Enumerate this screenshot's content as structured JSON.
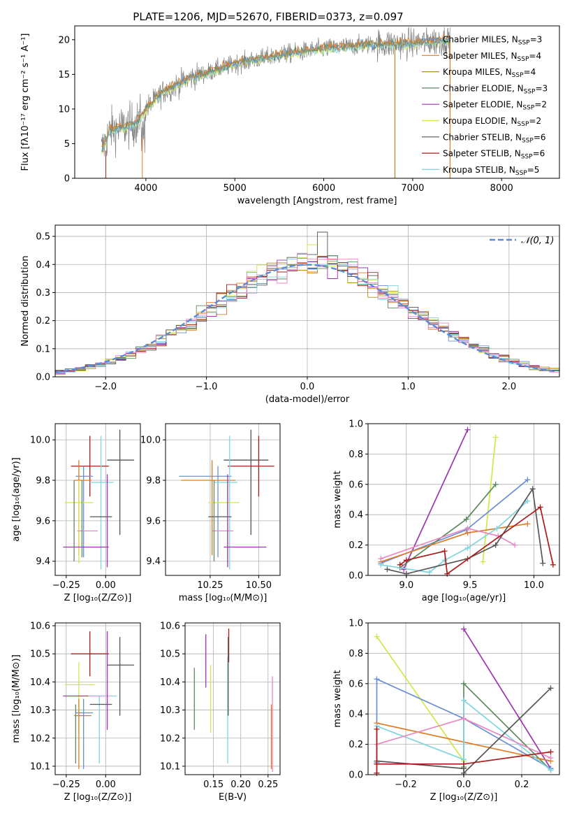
{
  "colors": {
    "chab_miles": "#6a8fd6",
    "salp_miles": "#e07a22",
    "krou_miles": "#b08a25",
    "chab_elodie": "#5c8a5c",
    "salp_elodie": "#9d34b0",
    "krou_elodie": "#d4e64a",
    "chab_stelib": "#555555",
    "salp_stelib": "#aa1c1c",
    "krou_stelib": "#7fd6de",
    "pink": "#e889c2",
    "spectrum": "#808080",
    "normal_curve": "#5b8ad6",
    "grid": "#b0b0b0"
  },
  "chart_data": [
    {
      "id": "spectrum",
      "type": "line",
      "title": "PLATE=1206, MJD=52670, FIBERID=0373, z=0.097",
      "xlabel": "wavelength [Angstrom, rest frame]",
      "ylabel": "Flux [fλ10⁻¹⁷ erg cm⁻² s⁻¹ A⁻¹]",
      "xlim": [
        3200,
        8650
      ],
      "ylim": [
        0,
        22
      ],
      "xticks": [
        "4000",
        "5000",
        "6000",
        "7000",
        "8000"
      ],
      "yticks": [
        "0",
        "5",
        "10",
        "15",
        "20"
      ],
      "grid": false,
      "legend_position": "right",
      "legend": [
        {
          "label": "Chabrier MILES, N",
          "sub": "SSP",
          "suffix": "=3",
          "color": "chab_miles"
        },
        {
          "label": "Salpeter MILES, N",
          "sub": "SSP",
          "suffix": "=4",
          "color": "salp_miles"
        },
        {
          "label": "Kroupa MILES, N",
          "sub": "SSP",
          "suffix": "=4",
          "color": "krou_miles"
        },
        {
          "label": "Chabrier ELODIE, N",
          "sub": "SSP",
          "suffix": "=3",
          "color": "chab_elodie"
        },
        {
          "label": "Salpeter ELODIE, N",
          "sub": "SSP",
          "suffix": "=2",
          "color": "salp_elodie"
        },
        {
          "label": "Kroupa ELODIE, N",
          "sub": "SSP",
          "suffix": "=2",
          "color": "krou_elodie"
        },
        {
          "label": "Chabrier STELIB, N",
          "sub": "SSP",
          "suffix": "=6",
          "color": "chab_stelib"
        },
        {
          "label": "Salpeter STELIB, N",
          "sub": "SSP",
          "suffix": "=6",
          "color": "salp_stelib"
        },
        {
          "label": "Kroupa STELIB, N",
          "sub": "SSP",
          "suffix": "=5",
          "color": "krou_stelib"
        }
      ],
      "continuum_x": [
        3500,
        3600,
        3800,
        3900,
        4000,
        4200,
        4500,
        5000,
        5500,
        6000,
        6500,
        7000,
        7420
      ],
      "continuum_y": [
        4.0,
        7.0,
        7.5,
        8.0,
        10.0,
        12.5,
        14.5,
        16.5,
        17.8,
        18.7,
        19.3,
        19.5,
        20.0
      ]
    },
    {
      "id": "residuals",
      "type": "histogram",
      "xlabel": "(data-model)/error",
      "ylabel": "Normed distribution",
      "xlim": [
        -2.5,
        2.5
      ],
      "ylim": [
        0,
        0.54
      ],
      "xticks": [
        -2,
        -1,
        0,
        1,
        2
      ],
      "yticks": [
        0.0,
        0.1,
        0.2,
        0.3,
        0.4,
        0.5
      ],
      "grid": true,
      "legend_position": "top-right",
      "legend_label": "𝒩(0, 1)",
      "bin_width": 0.1
    },
    {
      "id": "age_vs_Z",
      "type": "errorbar",
      "xlabel": "Z [log₁₀(Z/Z⊙)]",
      "ylabel": "age  [log₁₀(age/yr)]",
      "xlim": [
        -0.32,
        0.22
      ],
      "ylim": [
        9.33,
        10.08
      ],
      "xticks": [
        -0.25,
        0.0
      ],
      "yticks": [
        9.4,
        9.6,
        9.8,
        10.0
      ],
      "grid": true,
      "points": [
        {
          "color": "chab_stelib",
          "x": 0.09,
          "xe": [
            0.08,
            0.09
          ],
          "y": 9.9,
          "ye": [
            0.37,
            0.15
          ]
        },
        {
          "color": "salp_stelib",
          "x": -0.1,
          "xe": [
            0.12,
            0.12
          ],
          "y": 9.87,
          "ye": [
            0.15,
            0.15
          ]
        },
        {
          "color": "chab_miles",
          "x": -0.14,
          "xe": [
            0.05,
            0.06
          ],
          "y": 9.82,
          "ye": [
            0.4,
            0.05
          ]
        },
        {
          "color": "salp_miles",
          "x": -0.17,
          "xe": [
            0.03,
            0.08
          ],
          "y": 9.8,
          "ye": [
            0.37,
            0.1
          ]
        },
        {
          "color": "krou_stelib",
          "x": -0.03,
          "xe": [
            0.07,
            0.08
          ],
          "y": 9.79,
          "ye": [
            0.43,
            0.23
          ]
        },
        {
          "color": "krou_elodie",
          "x": -0.17,
          "xe": [
            0.09,
            0.09
          ],
          "y": 9.69,
          "ye": [
            0.3,
            0.11
          ]
        },
        {
          "color": "chab_stelib",
          "x": -0.03,
          "xe": [
            0.07,
            0.07
          ],
          "y": 9.62,
          "ye": [
            0.0,
            0.0
          ]
        },
        {
          "color": "pink",
          "x": -0.1,
          "xe": [
            0.08,
            0.05
          ],
          "y": 9.55,
          "ye": [
            0.0,
            0.0
          ]
        },
        {
          "color": "salp_elodie",
          "x": -0.1,
          "xe": [
            0.17,
            0.12
          ],
          "y": 9.47,
          "ye": [
            0.0,
            0.0
          ]
        },
        {
          "color": "chab_elodie",
          "x": -0.2,
          "xe": [
            0.0,
            0.0
          ],
          "y": 9.6,
          "ye": [
            0.2,
            0.2
          ]
        },
        {
          "color": "salp_elodie",
          "x": 0.01,
          "xe": [
            0.0,
            0.0
          ],
          "y": 9.7,
          "ye": [
            0.33,
            0.13
          ]
        },
        {
          "color": "chab_elodie",
          "x": -0.15,
          "xe": [
            0.0,
            0.0
          ],
          "y": 9.65,
          "ye": [
            0.23,
            0.15
          ]
        }
      ]
    },
    {
      "id": "age_vs_mass",
      "type": "errorbar",
      "xlabel": "mass [log₁₀(M/M⊙)]",
      "ylabel": "",
      "xlim": [
        10.02,
        10.61
      ],
      "ylim": [
        9.33,
        10.08
      ],
      "xticks": [
        10.25,
        10.5
      ],
      "yticks": [
        9.4,
        9.6,
        9.8,
        10.0
      ],
      "grid": true,
      "points": [
        {
          "color": "chab_stelib",
          "x": 10.46,
          "xe": [
            0.14,
            0.09
          ],
          "y": 9.9,
          "ye": [
            0.37,
            0.15
          ]
        },
        {
          "color": "salp_stelib",
          "x": 10.5,
          "xe": [
            0.16,
            0.08
          ],
          "y": 9.87,
          "ye": [
            0.15,
            0.15
          ]
        },
        {
          "color": "chab_miles",
          "x": 10.29,
          "xe": [
            0.2,
            0.07
          ],
          "y": 9.82,
          "ye": [
            0.4,
            0.05
          ]
        },
        {
          "color": "salp_miles",
          "x": 10.26,
          "xe": [
            0.16,
            0.12
          ],
          "y": 9.8,
          "ye": [
            0.37,
            0.1
          ]
        },
        {
          "color": "krou_stelib",
          "x": 10.35,
          "xe": [
            0.08,
            0.04
          ],
          "y": 9.79,
          "ye": [
            0.43,
            0.23
          ]
        },
        {
          "color": "krou_elodie",
          "x": 10.34,
          "xe": [
            0.1,
            0.06
          ],
          "y": 9.69,
          "ye": [
            0.3,
            0.11
          ]
        },
        {
          "color": "chab_stelib",
          "x": 10.32,
          "xe": [
            0.08,
            0.04
          ],
          "y": 9.62,
          "ye": [
            0.0,
            0.0
          ]
        },
        {
          "color": "pink",
          "x": 10.31,
          "xe": [
            0.05,
            0.06
          ],
          "y": 9.55,
          "ye": [
            0.0,
            0.0
          ]
        },
        {
          "color": "salp_elodie",
          "x": 10.42,
          "xe": [
            0.1,
            0.12
          ],
          "y": 9.47,
          "ye": [
            0.0,
            0.0
          ]
        },
        {
          "color": "chab_elodie",
          "x": 10.27,
          "xe": [
            0.0,
            0.0
          ],
          "y": 9.6,
          "ye": [
            0.2,
            0.2
          ]
        },
        {
          "color": "salp_elodie",
          "x": 10.34,
          "xe": [
            0.0,
            0.0
          ],
          "y": 9.7,
          "ye": [
            0.33,
            0.13
          ]
        }
      ]
    },
    {
      "id": "weight_vs_age",
      "type": "line",
      "xlabel": "age  [log₁₀(age/yr)]",
      "ylabel": "mass weight",
      "xlim": [
        8.7,
        10.2
      ],
      "ylim": [
        0,
        1
      ],
      "xticks": [
        9.0,
        9.5,
        10.0
      ],
      "yticks": [
        0.0,
        0.2,
        0.4,
        0.6,
        0.8,
        1.0
      ],
      "grid": true,
      "series": [
        {
          "color": "salp_elodie",
          "x": [
            8.98,
            9.48
          ],
          "y": [
            0.04,
            0.96
          ]
        },
        {
          "color": "krou_elodie",
          "x": [
            9.6,
            9.7
          ],
          "y": [
            0.09,
            0.91
          ]
        },
        {
          "color": "chab_miles",
          "x": [
            8.8,
            9.47,
            9.95
          ],
          "y": [
            0.08,
            0.3,
            0.63
          ]
        },
        {
          "color": "chab_elodie",
          "x": [
            8.95,
            9.47,
            9.7
          ],
          "y": [
            0.05,
            0.37,
            0.6
          ]
        },
        {
          "color": "salp_miles",
          "x": [
            8.8,
            9.48,
            9.95
          ],
          "y": [
            0.09,
            0.28,
            0.34
          ]
        },
        {
          "color": "krou_stelib",
          "x": [
            8.8,
            9.18,
            9.3,
            9.48,
            9.71,
            9.95
          ],
          "y": [
            0.07,
            0.02,
            0.1,
            0.18,
            0.31,
            0.49
          ]
        },
        {
          "color": "pink",
          "x": [
            8.8,
            9.48,
            9.72,
            9.85
          ],
          "y": [
            0.11,
            0.31,
            0.26,
            0.2
          ]
        },
        {
          "color": "chab_stelib",
          "x": [
            8.85,
            9.0,
            9.48,
            9.7,
            9.99,
            10.07
          ],
          "y": [
            0.04,
            0.01,
            0.11,
            0.2,
            0.57,
            0.08
          ]
        },
        {
          "color": "salp_stelib",
          "x": [
            8.95,
            9.0,
            9.3,
            9.32,
            10.05,
            10.15
          ],
          "y": [
            0.07,
            0.1,
            0.16,
            0.01,
            0.45,
            0.07
          ]
        }
      ]
    },
    {
      "id": "mass_vs_Z",
      "type": "errorbar",
      "xlabel": "Z [log₁₀(Z/Z⊙)]",
      "ylabel": "mass [log₁₀(M/M⊙)]",
      "xlim": [
        -0.32,
        0.22
      ],
      "ylim": [
        10.07,
        10.61
      ],
      "xticks": [
        -0.25,
        0.0
      ],
      "yticks": [
        10.1,
        10.2,
        10.3,
        10.4,
        10.5,
        10.6
      ],
      "grid": true,
      "points": [
        {
          "color": "salp_stelib",
          "x": -0.1,
          "xe": [
            0.12,
            0.12
          ],
          "y": 10.5,
          "ye": [
            0.08,
            0.08
          ]
        },
        {
          "color": "chab_stelib",
          "x": 0.09,
          "xe": [
            0.08,
            0.09
          ],
          "y": 10.46,
          "ye": [
            0.18,
            0.1
          ]
        },
        {
          "color": "krou_elodie",
          "x": -0.17,
          "xe": [
            0.09,
            0.1
          ],
          "y": 10.39,
          "ye": [
            0.17,
            0.08
          ]
        },
        {
          "color": "salp_elodie",
          "x": -0.1,
          "xe": [
            0.17,
            0.12
          ],
          "y": 10.35,
          "ye": [
            0.0,
            0.0
          ]
        },
        {
          "color": "krou_stelib",
          "x": -0.04,
          "xe": [
            0.07,
            0.11
          ],
          "y": 10.35,
          "ye": [
            0.24,
            0.0
          ]
        },
        {
          "color": "chab_stelib",
          "x": -0.03,
          "xe": [
            0.07,
            0.07
          ],
          "y": 10.32,
          "ye": [
            0.0,
            0.0
          ]
        },
        {
          "color": "chab_miles",
          "x": -0.14,
          "xe": [
            0.05,
            0.06
          ],
          "y": 10.29,
          "ye": [
            0.2,
            0.05
          ]
        },
        {
          "color": "salp_miles",
          "x": -0.17,
          "xe": [
            0.03,
            0.08
          ],
          "y": 10.28,
          "ye": [
            0.19,
            0.06
          ]
        },
        {
          "color": "salp_elodie",
          "x": 0.01,
          "xe": [
            0.0,
            0.0
          ],
          "y": 10.4,
          "ye": [
            0.17,
            0.18
          ]
        },
        {
          "color": "chab_elodie",
          "x": -0.19,
          "xe": [
            0.0,
            0.0
          ],
          "y": 10.26,
          "ye": [
            0.15,
            0.06
          ]
        }
      ]
    },
    {
      "id": "mass_vs_ebv",
      "type": "errorbar",
      "xlabel": "E(B-V)",
      "ylabel": "",
      "xlim": [
        0.098,
        0.272
      ],
      "ylim": [
        10.07,
        10.61
      ],
      "xticks": [
        0.15,
        0.2,
        0.25
      ],
      "yticks": [
        10.1,
        10.2,
        10.3,
        10.4,
        10.5,
        10.6
      ],
      "grid": true,
      "points": [
        {
          "color": "chab_elodie",
          "x": 0.115,
          "y": 10.34,
          "ye": [
            0.11,
            0.11
          ]
        },
        {
          "color": "salp_elodie",
          "x": 0.136,
          "y": 10.49,
          "ye": [
            0.11,
            0.08
          ]
        },
        {
          "color": "krou_elodie",
          "x": 0.145,
          "y": 10.34,
          "ye": [
            0.12,
            0.12
          ]
        },
        {
          "color": "krou_stelib",
          "x": 0.176,
          "y": 10.3,
          "ye": [
            0.19,
            0.19
          ]
        },
        {
          "color": "salp_stelib",
          "x": 0.178,
          "y": 10.53,
          "ye": [
            0.06,
            0.06
          ]
        },
        {
          "color": "chab_stelib",
          "x": 0.177,
          "y": 10.42,
          "ye": [
            0.14,
            0.14
          ]
        },
        {
          "color": "salp_miles",
          "x": 0.256,
          "y": 10.25,
          "ye": [
            0.16,
            0.07
          ]
        },
        {
          "color": "pink",
          "x": 0.258,
          "y": 10.28,
          "ye": [
            0.2,
            0.14
          ]
        }
      ]
    },
    {
      "id": "weight_vs_Z",
      "type": "line",
      "xlabel": "Z [log₁₀(Z/Z⊙)]",
      "ylabel": "mass weight",
      "xlim": [
        -0.33,
        0.33
      ],
      "ylim": [
        0,
        1
      ],
      "xticks": [
        -0.2,
        0.0,
        0.2
      ],
      "yticks": [
        0.0,
        0.2,
        0.4,
        0.6,
        0.8,
        1.0
      ],
      "grid": true,
      "series": [
        {
          "color": "krou_elodie",
          "x": [
            -0.3,
            0.0
          ],
          "y": [
            0.91,
            0.09
          ]
        },
        {
          "color": "salp_elodie",
          "x": [
            0.0,
            0.3
          ],
          "y": [
            0.96,
            0.04
          ]
        },
        {
          "color": "chab_elodie",
          "x": [
            0.0,
            0.0,
            0.3
          ],
          "y": [
            0.05,
            0.6,
            0.03
          ]
        },
        {
          "color": "chab_miles",
          "x": [
            -0.3,
            -0.3,
            0.0,
            0.3
          ],
          "y": [
            0.08,
            0.63,
            0.37,
            0.04
          ]
        },
        {
          "color": "salp_miles",
          "x": [
            -0.3,
            0.3
          ],
          "y": [
            0.34,
            0.09
          ]
        },
        {
          "color": "krou_stelib",
          "x": [
            -0.3,
            0.0,
            0.0,
            0.3
          ],
          "y": [
            0.32,
            0.1,
            0.49,
            0.03
          ]
        },
        {
          "color": "pink",
          "x": [
            -0.3,
            0.0,
            0.3
          ],
          "y": [
            0.2,
            0.37,
            0.11
          ]
        },
        {
          "color": "chab_stelib",
          "x": [
            -0.3,
            0.0,
            0.0,
            0.3
          ],
          "y": [
            0.09,
            0.04,
            0.01,
            0.57
          ]
        },
        {
          "color": "salp_stelib",
          "x": [
            -0.3,
            -0.3,
            -0.3,
            0.0,
            0.3
          ],
          "y": [
            0.01,
            0.3,
            0.07,
            0.07,
            0.15
          ]
        }
      ]
    }
  ]
}
